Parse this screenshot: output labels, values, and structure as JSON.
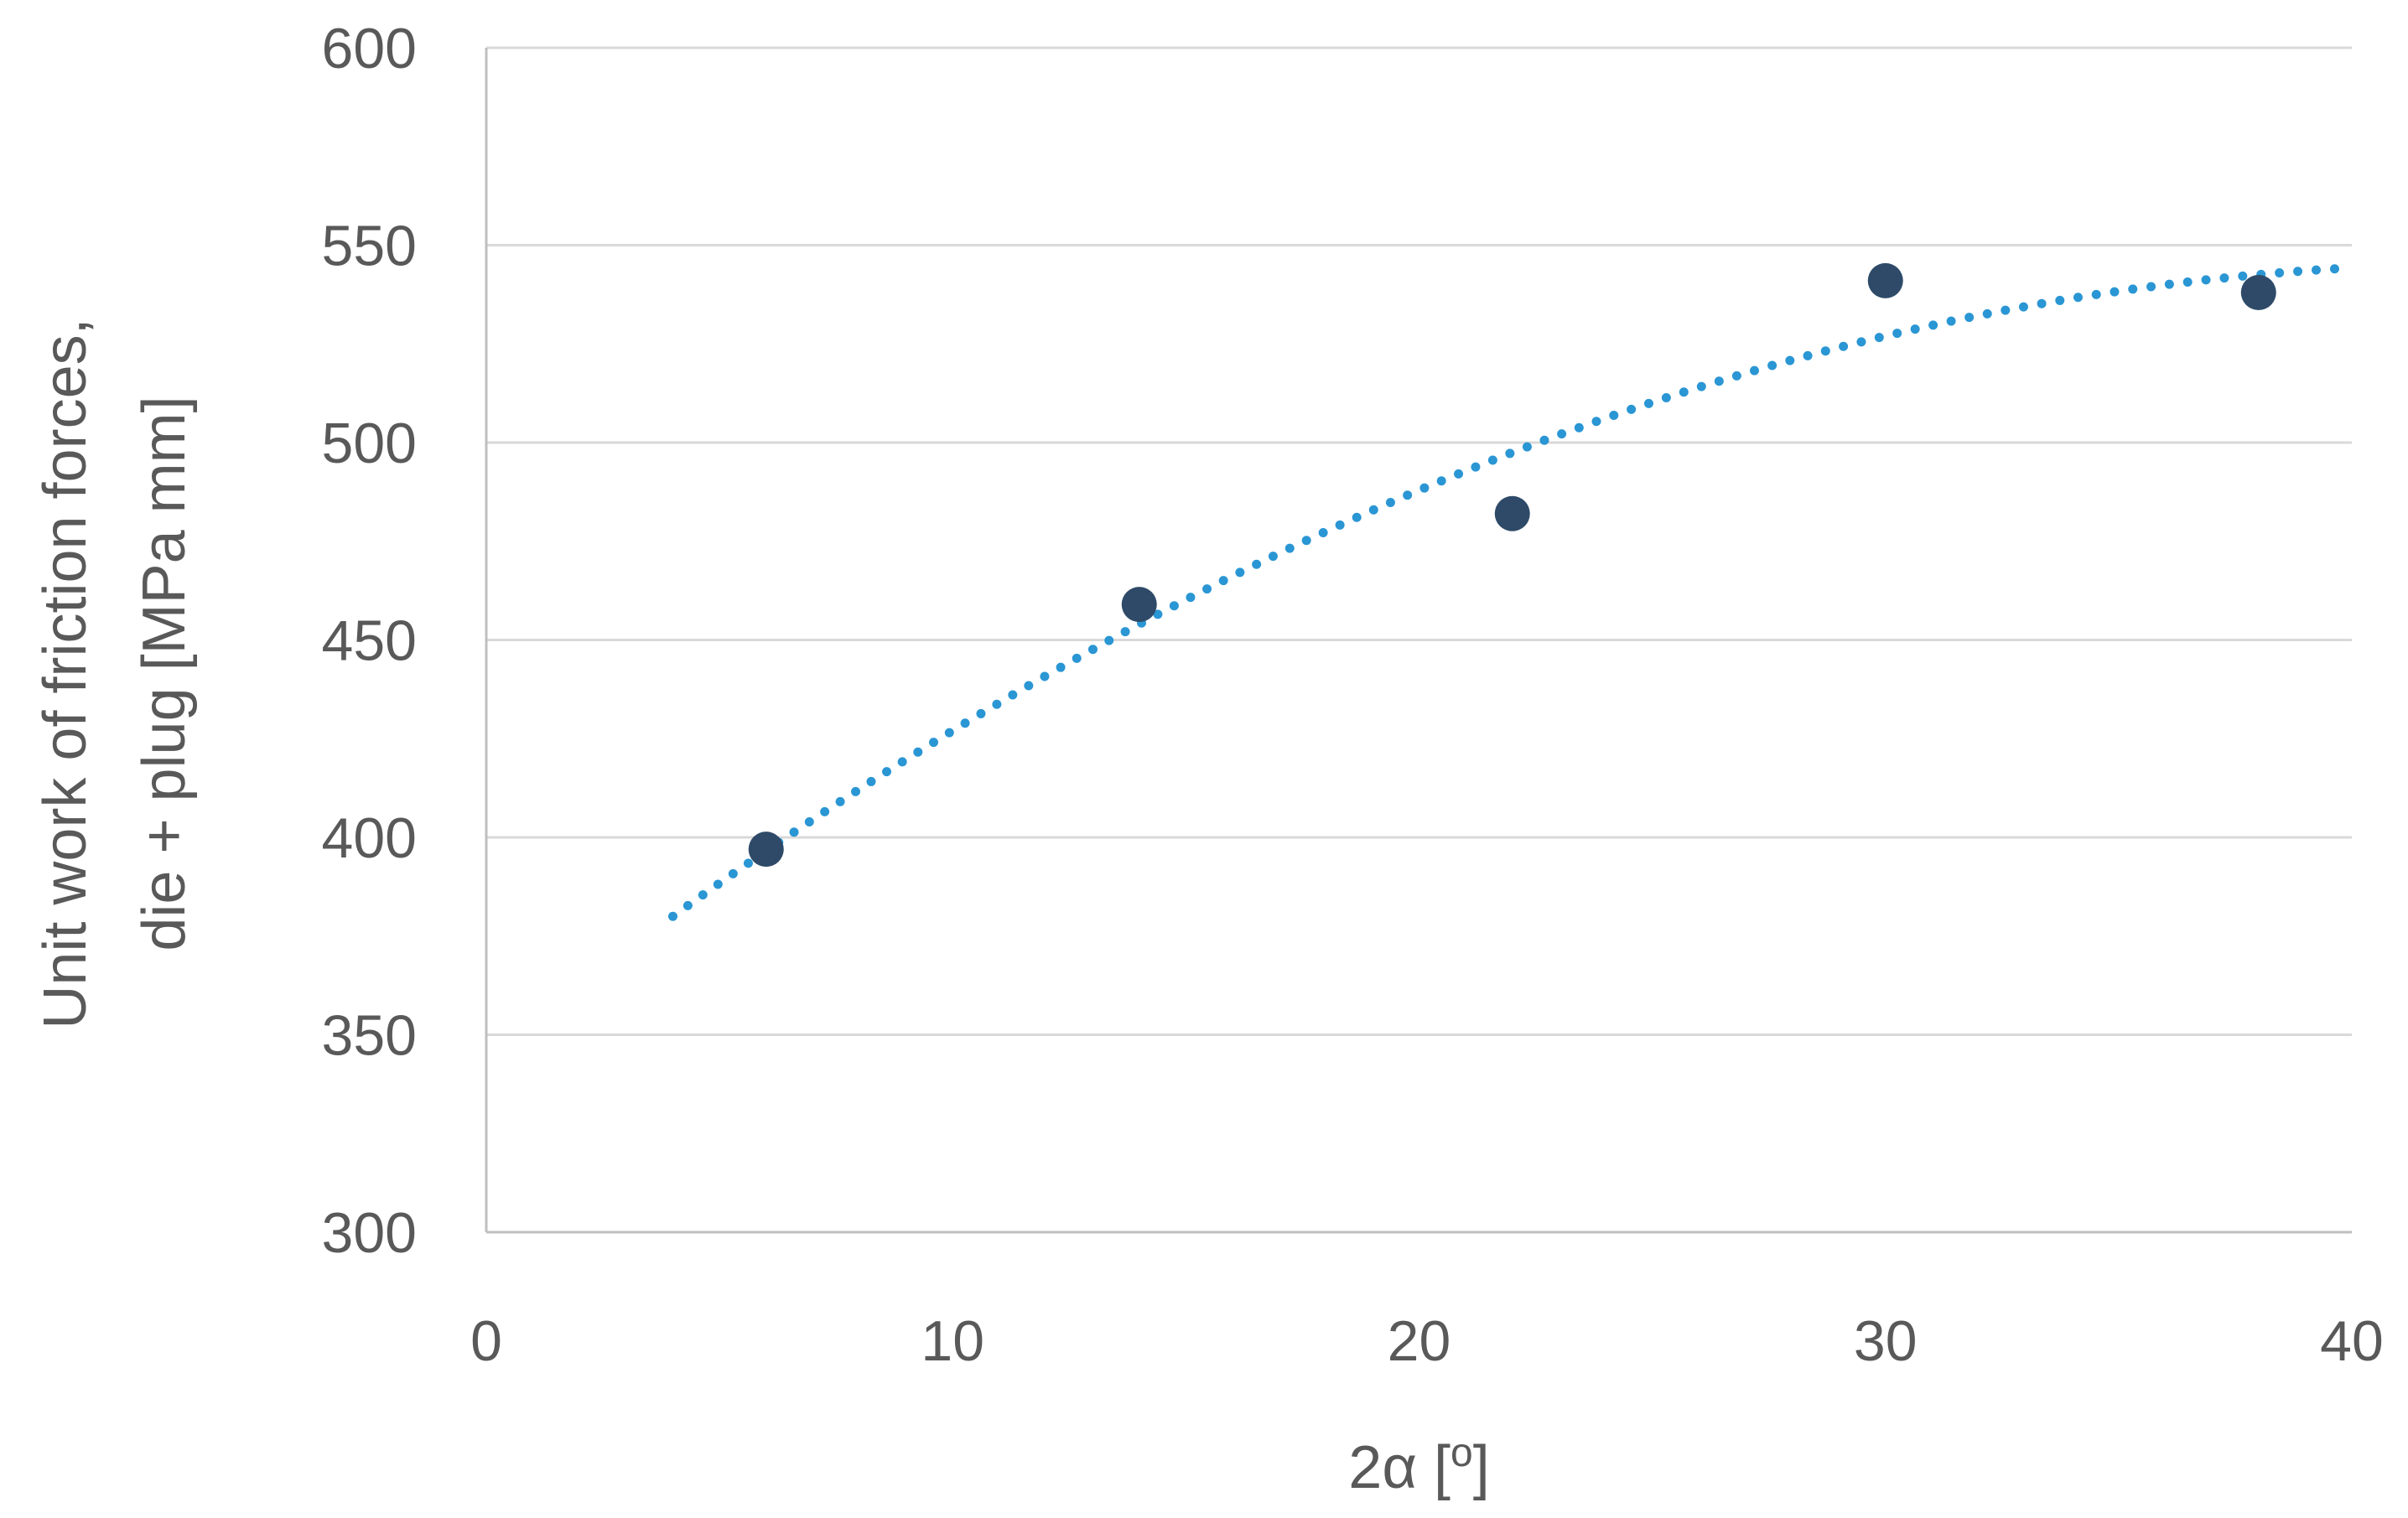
{
  "chart_data": {
    "type": "scatter",
    "title": "",
    "xlabel": "2α [o]",
    "ylabel_line1": "Unit work of friction forces,",
    "ylabel_line2": "die + plug [MPa mm]",
    "xlim": [
      0,
      40
    ],
    "ylim": [
      300,
      600
    ],
    "xticks": [
      0,
      10,
      20,
      30,
      40
    ],
    "yticks": [
      300,
      350,
      400,
      450,
      500,
      550,
      600
    ],
    "grid": {
      "horizontal": true,
      "vertical": false
    },
    "legend": "none",
    "series": [
      {
        "x": [
          6,
          14,
          22,
          30,
          38
        ],
        "y": [
          397,
          459,
          482,
          541,
          538
        ],
        "color": "#2e4a68",
        "marker": "circle"
      }
    ],
    "trendline": {
      "type": "polynomial",
      "order": 2,
      "style": "dotted",
      "color": "#2a96d4",
      "x_range": [
        4,
        40
      ],
      "points": [
        {
          "x": 4,
          "y": 380
        },
        {
          "x": 14,
          "y": 454
        },
        {
          "x": 30,
          "y": 527
        },
        {
          "x": 40,
          "y": 545
        }
      ]
    },
    "colors": {
      "grid": "#d9d9d9",
      "axis": "#bfbfbf",
      "text": "#595959"
    }
  }
}
